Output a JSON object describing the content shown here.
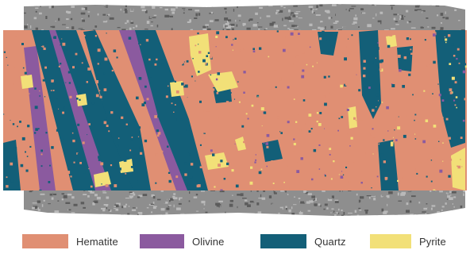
{
  "image": {
    "subject": "drill core scan with mineral classification overlay",
    "colors": {
      "background": "#ffffff",
      "core_gray": "#8e8e8e",
      "core_gray_dark": "#5c5c5c",
      "core_gray_light": "#b9b9b9"
    }
  },
  "legend": {
    "items": [
      {
        "key": "hematite",
        "label": "Hematite",
        "color": "#e08f73"
      },
      {
        "key": "olivine",
        "label": "Olivine",
        "color": "#8b5a9f"
      },
      {
        "key": "quartz",
        "label": "Quartz",
        "color": "#135f78"
      },
      {
        "key": "pyrite",
        "label": "Pyrite",
        "color": "#f2e078"
      }
    ]
  }
}
